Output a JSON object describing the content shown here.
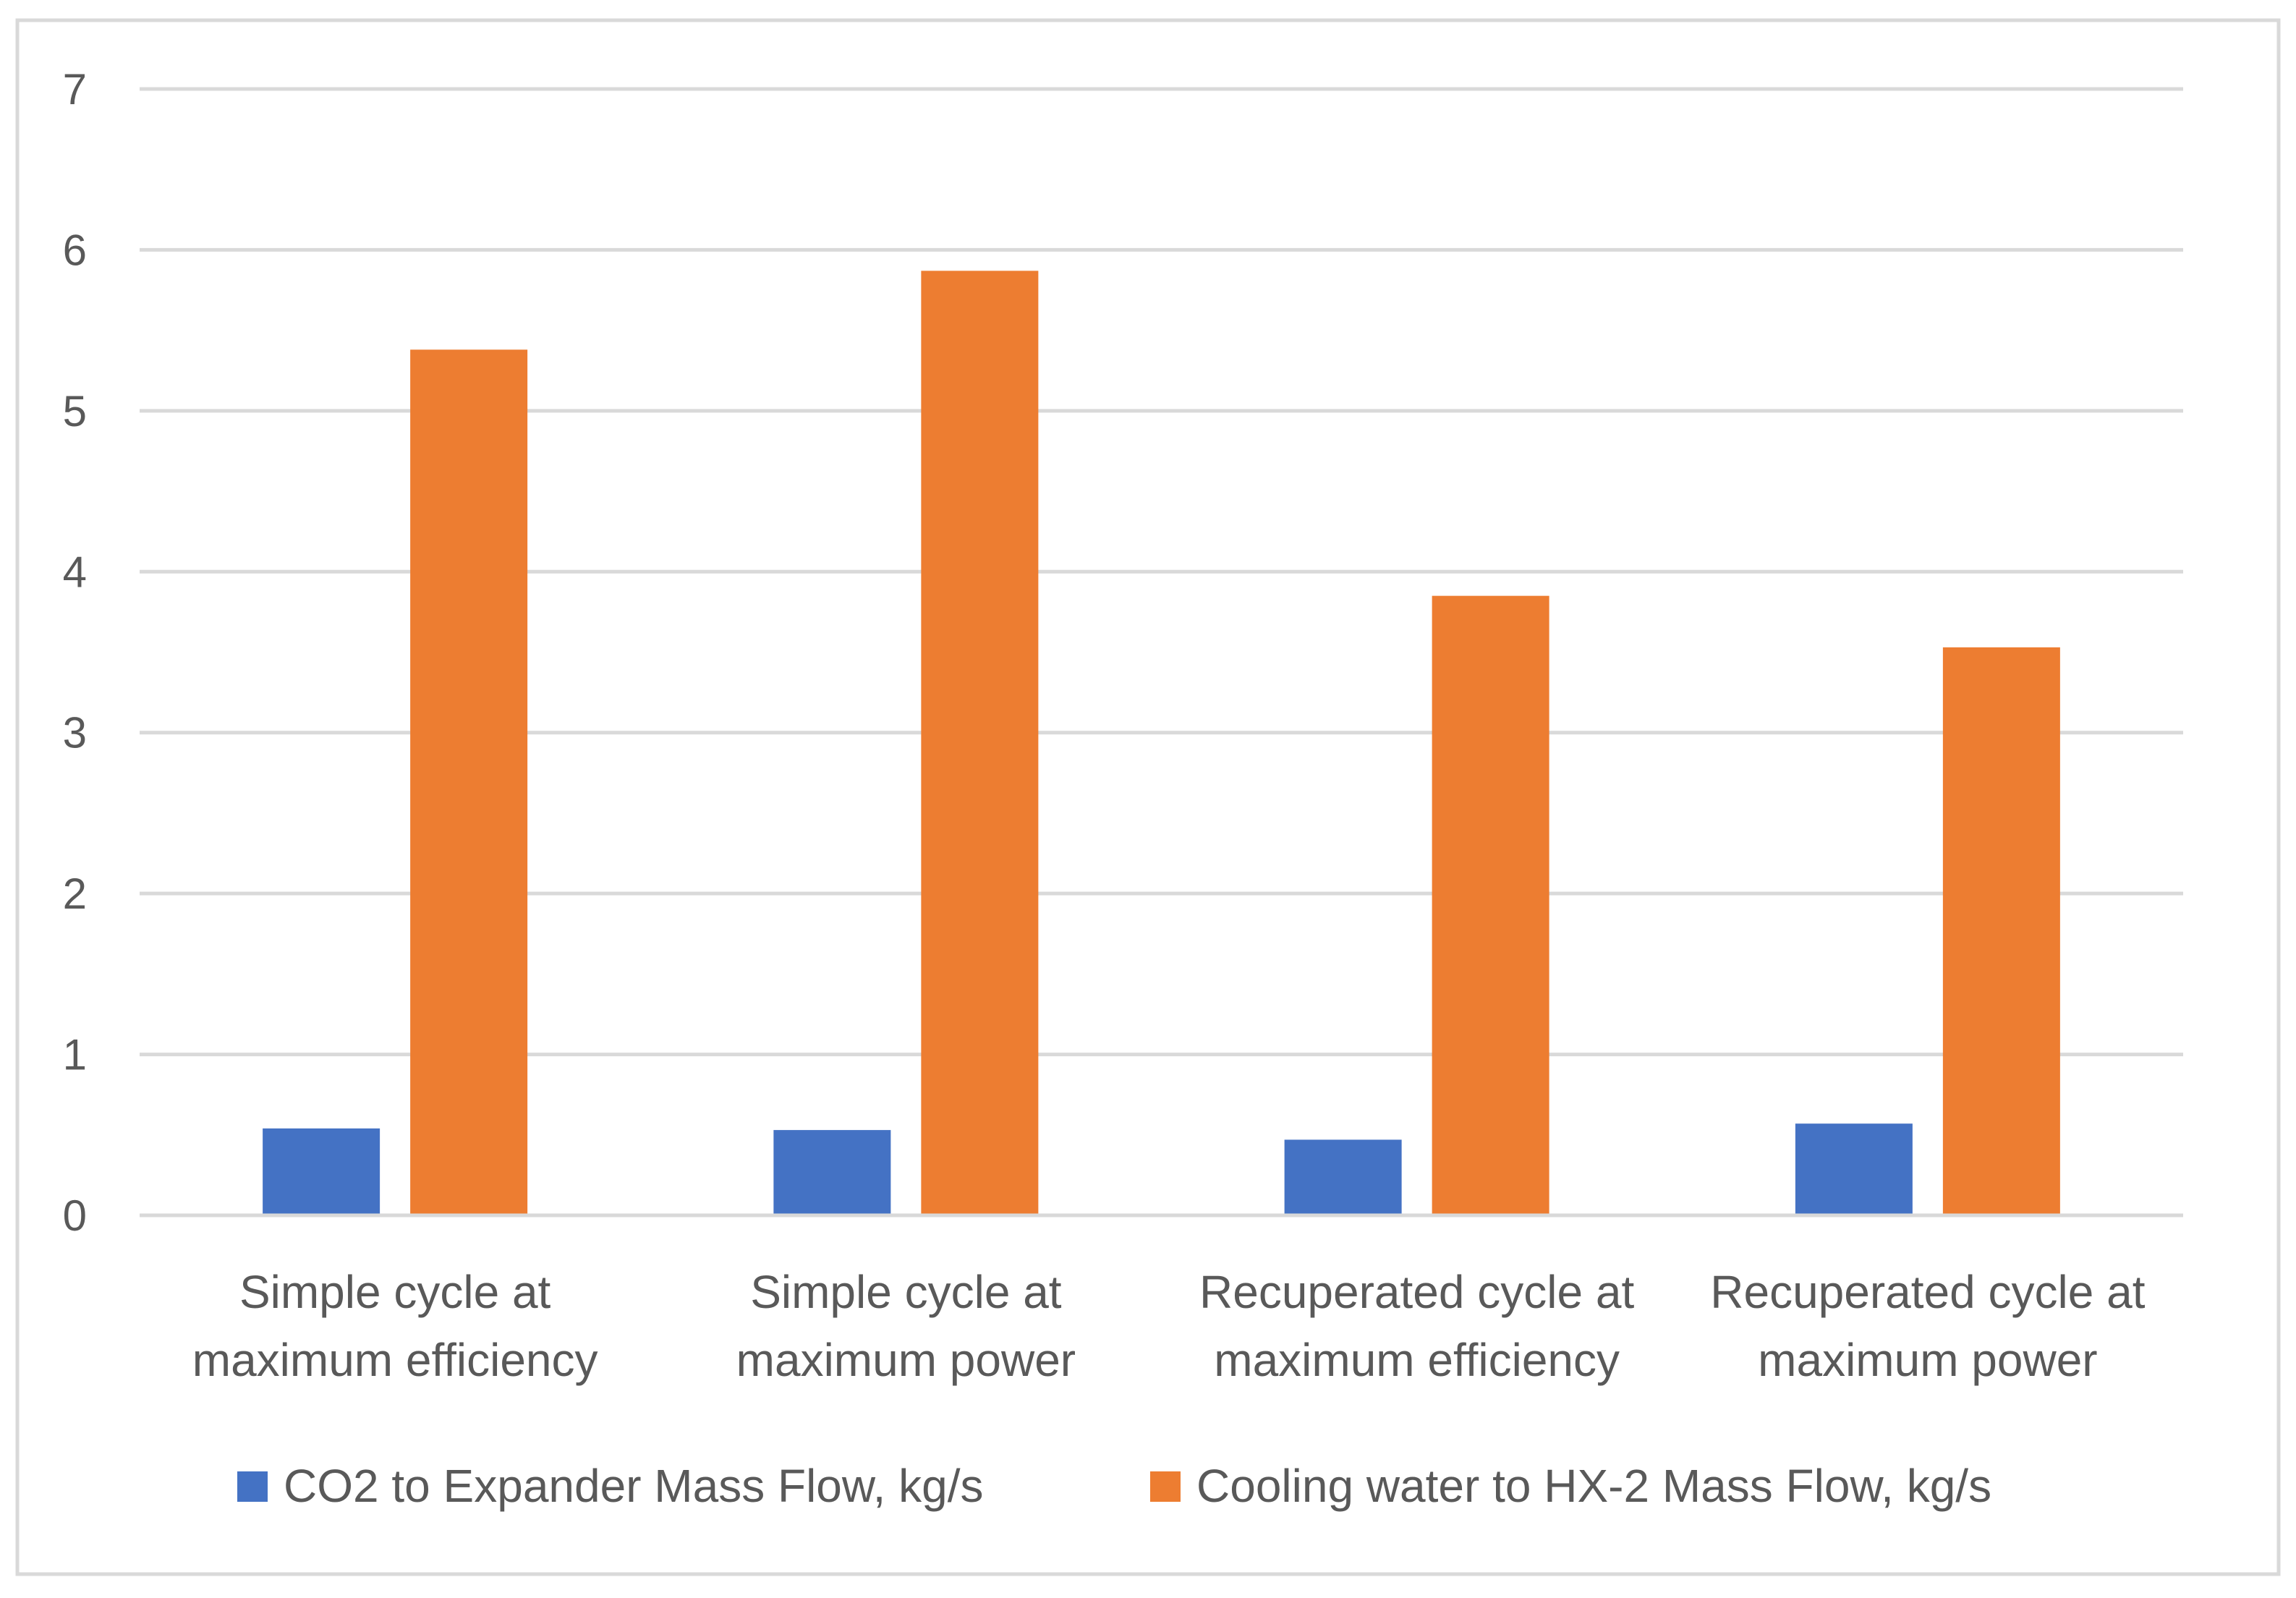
{
  "chart_data": {
    "type": "bar",
    "title": "",
    "xlabel": "",
    "ylabel": "",
    "ylim": [
      0,
      7
    ],
    "yticks": [
      0,
      1,
      2,
      3,
      4,
      5,
      6,
      7
    ],
    "grid": true,
    "legend_position": "bottom",
    "categories": [
      [
        "Simple cycle at",
        "maximum efficiency"
      ],
      [
        "Simple cycle at",
        "maximum power"
      ],
      [
        "Recuperated cycle at",
        "maximum efficiency"
      ],
      [
        "Recuperated cycle at",
        "maximum power"
      ]
    ],
    "series": [
      {
        "name": "CO2 to Expander Mass Flow, kg/s",
        "color": "#4472C4",
        "values": [
          0.54,
          0.53,
          0.47,
          0.57
        ]
      },
      {
        "name": "Cooling water to HX-2 Mass Flow, kg/s",
        "color": "#ED7D31",
        "values": [
          5.38,
          5.87,
          3.85,
          3.53
        ]
      }
    ]
  },
  "colors": {
    "gridline": "#D9D9D9",
    "frame": "#D9D9D9",
    "text": "#595959"
  }
}
